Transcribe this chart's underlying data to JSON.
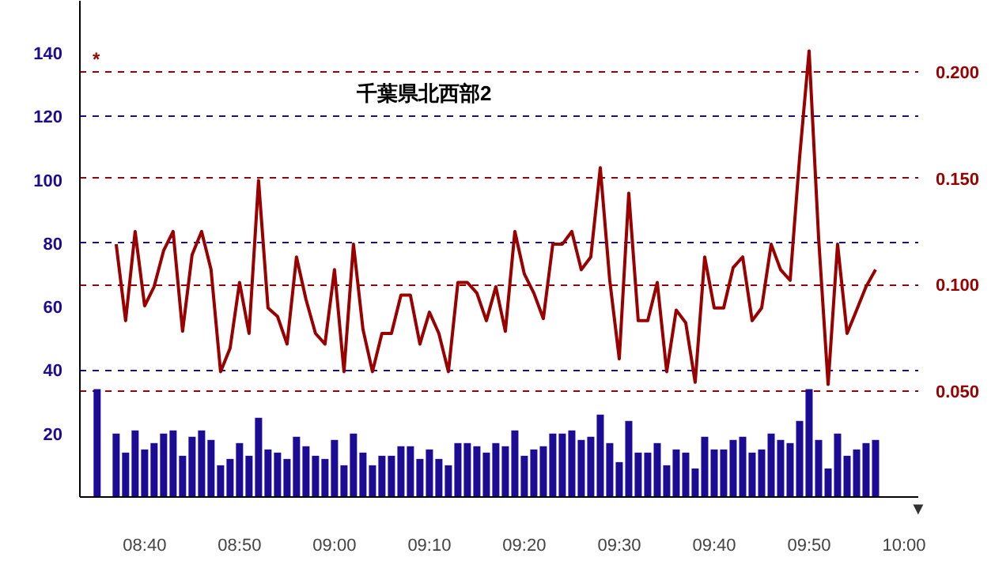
{
  "chart_data": {
    "type": "bar",
    "title": "千葉県北西部2",
    "xlim": [
      8.553,
      10.025
    ],
    "xticks": [
      {
        "value": 8.6667,
        "label": "08:40"
      },
      {
        "value": 8.8333,
        "label": "08:50"
      },
      {
        "value": 9.0,
        "label": "09:00"
      },
      {
        "value": 9.1667,
        "label": "09:10"
      },
      {
        "value": 9.3333,
        "label": "09:20"
      },
      {
        "value": 9.5,
        "label": "09:30"
      },
      {
        "value": 9.6667,
        "label": "09:40"
      },
      {
        "value": 9.8333,
        "label": "09:50"
      },
      {
        "value": 10.0,
        "label": "10:00"
      }
    ],
    "ylim": [
      0,
      156.5
    ],
    "yticks": [
      20,
      40,
      60,
      80,
      100,
      120,
      140
    ],
    "y2lim": [
      0,
      0.2336
    ],
    "y2ticks": [
      {
        "value": 0.05,
        "label": "0.050"
      },
      {
        "value": 0.1,
        "label": "0.100"
      },
      {
        "value": 0.15,
        "label": "0.150"
      },
      {
        "value": 0.2,
        "label": "0.200"
      }
    ],
    "grid": "y",
    "series": [
      {
        "color": "#1c0c94",
        "x": [
          8.5833,
          8.6,
          8.6167,
          8.6333,
          8.65,
          8.6667,
          8.6833,
          8.7,
          8.7167,
          8.7333,
          8.75,
          8.7667,
          8.7833,
          8.8,
          8.8167,
          8.8333,
          8.85,
          8.8667,
          8.8833,
          8.9,
          8.9167,
          8.9333,
          8.95,
          8.9667,
          8.9833,
          9.0,
          9.0167,
          9.0333,
          9.05,
          9.0667,
          9.0833,
          9.1,
          9.1167,
          9.1333,
          9.15,
          9.1667,
          9.1833,
          9.2,
          9.2167,
          9.2333,
          9.25,
          9.2667,
          9.2833,
          9.3,
          9.3167,
          9.3333,
          9.35,
          9.3667,
          9.3833,
          9.4,
          9.4167,
          9.4333,
          9.45,
          9.4667,
          9.4833,
          9.5,
          9.5167,
          9.5333,
          9.55,
          9.5667,
          9.5833,
          9.6,
          9.6167,
          9.6333,
          9.65,
          9.6667,
          9.6833,
          9.7,
          9.7167,
          9.7333,
          9.75,
          9.7667,
          9.7833,
          9.8,
          9.8167,
          9.8333,
          9.85,
          9.8667,
          9.8833,
          9.9,
          9.9167,
          9.9333,
          9.95
        ],
        "values": [
          34,
          null,
          20,
          14,
          21,
          15,
          17,
          20,
          21,
          13,
          19,
          21,
          18,
          10,
          12,
          17,
          13,
          25,
          15,
          14,
          12,
          19,
          16,
          13,
          12,
          18,
          10,
          20,
          14,
          10,
          13,
          13,
          16,
          16,
          12,
          15,
          12,
          10,
          17,
          17,
          16,
          14,
          17,
          16,
          21,
          13,
          15,
          16,
          20,
          20,
          21,
          18,
          19,
          26,
          17,
          11,
          24,
          14,
          14,
          17,
          10,
          15,
          14,
          9,
          19,
          15,
          15,
          18,
          19,
          14,
          15,
          20,
          18,
          17,
          24,
          34,
          18,
          9,
          20,
          13,
          15,
          17,
          18
        ]
      },
      {
        "type": "line",
        "axis": "y2",
        "color": "#990000",
        "x": [
          8.6167,
          8.6333,
          8.65,
          8.6667,
          8.6833,
          8.7,
          8.7167,
          8.7333,
          8.75,
          8.7667,
          8.7833,
          8.8,
          8.8167,
          8.8333,
          8.85,
          8.8667,
          8.8833,
          8.9,
          8.9167,
          8.9333,
          8.95,
          8.9667,
          8.9833,
          9.0,
          9.0167,
          9.0333,
          9.05,
          9.0667,
          9.0833,
          9.1,
          9.1167,
          9.1333,
          9.15,
          9.1667,
          9.1833,
          9.2,
          9.2167,
          9.2333,
          9.25,
          9.2667,
          9.2833,
          9.3,
          9.3167,
          9.3333,
          9.35,
          9.3667,
          9.3833,
          9.4,
          9.4167,
          9.4333,
          9.45,
          9.4667,
          9.4833,
          9.5,
          9.5167,
          9.5333,
          9.55,
          9.5667,
          9.5833,
          9.6,
          9.6167,
          9.6333,
          9.65,
          9.6667,
          9.6833,
          9.7,
          9.7167,
          9.7333,
          9.75,
          9.7667,
          9.7833,
          9.8,
          9.8167,
          9.8333,
          9.85,
          9.8667,
          9.8833,
          9.9,
          9.9167,
          9.9333,
          9.95
        ],
        "values": [
          0.119,
          0.083,
          0.125,
          0.09,
          0.099,
          0.116,
          0.125,
          0.078,
          0.114,
          0.125,
          0.107,
          0.059,
          0.07,
          0.101,
          0.077,
          0.149,
          0.089,
          0.085,
          0.072,
          0.113,
          0.093,
          0.077,
          0.072,
          0.107,
          0.059,
          0.119,
          0.079,
          0.059,
          0.077,
          0.077,
          0.095,
          0.095,
          0.072,
          0.087,
          0.077,
          0.059,
          0.101,
          0.101,
          0.096,
          0.083,
          0.099,
          0.078,
          0.125,
          0.105,
          0.096,
          0.084,
          0.119,
          0.119,
          0.125,
          0.107,
          0.113,
          0.155,
          0.102,
          0.065,
          0.143,
          0.083,
          0.083,
          0.101,
          0.059,
          0.088,
          0.082,
          0.054,
          0.113,
          0.089,
          0.089,
          0.108,
          0.113,
          0.083,
          0.089,
          0.119,
          0.107,
          0.102,
          0.16,
          0.21,
          0.122,
          0.053,
          0.119,
          0.077,
          0.088,
          0.099,
          0.107
        ]
      }
    ],
    "annotations": [
      "*",
      "▼"
    ]
  }
}
